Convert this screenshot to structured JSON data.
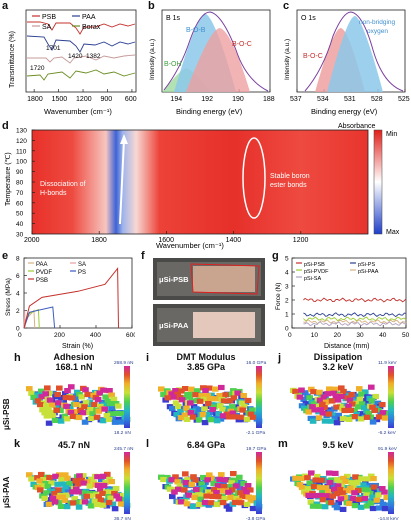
{
  "panel_letters": {
    "a": "a",
    "b": "b",
    "c": "c",
    "d": "d",
    "e": "e",
    "f": "f",
    "g": "g",
    "h": "h",
    "i": "i",
    "j": "j",
    "k": "k",
    "l": "l",
    "m": "m"
  },
  "chart_data": [
    {
      "id": "a",
      "type": "line",
      "xlabel": "Wavenumber (cm⁻¹)",
      "ylabel": "Transmittance (%)",
      "xlim": [
        1900,
        550
      ],
      "xticks": [
        1800,
        1500,
        1200,
        900,
        600
      ],
      "series": [
        {
          "name": "PSB",
          "color": "#c4302b"
        },
        {
          "name": "PAA",
          "color": "#2a3f8f"
        },
        {
          "name": "SA",
          "color": "#c79a9a"
        },
        {
          "name": "Borax",
          "color": "#6b8e23"
        }
      ],
      "annotations": [
        "1701",
        "1420",
        "1382",
        "1720"
      ]
    },
    {
      "id": "b",
      "type": "line",
      "title": "B 1s",
      "xlabel": "Binding energy (eV)",
      "ylabel": "Intensity (a.u.)",
      "xlim": [
        195,
        188
      ],
      "xticks": [
        194,
        192,
        190,
        188
      ],
      "peaks": [
        {
          "name": "B-O-B",
          "center": 192.6,
          "color": "#5ab0e0"
        },
        {
          "name": "B-O-C",
          "center": 191.9,
          "color": "#e07c7c"
        },
        {
          "name": "B-OH",
          "center": 193.6,
          "color": "#6fc26f"
        }
      ]
    },
    {
      "id": "c",
      "type": "line",
      "title": "O 1s",
      "xlabel": "Binding energy (eV)",
      "ylabel": "Intensity (a.u.)",
      "xlim": [
        537,
        525
      ],
      "xticks": [
        537,
        534,
        531,
        528,
        525
      ],
      "peaks": [
        {
          "name": "B-O-C",
          "center": 532.6,
          "color": "#e07c7c"
        },
        {
          "name": "non-bridging oxygen",
          "center": 531.4,
          "color": "#5ab0e0"
        }
      ],
      "labels": {
        "bridge_line1": "non-bridging",
        "bridge_line2": "oxygen"
      }
    },
    {
      "id": "d",
      "type": "heatmap",
      "xlabel": "Wavenumber (cm⁻¹)",
      "ylabel": "Temperature (℃)",
      "xlim": [
        2000,
        1000
      ],
      "xticks": [
        2000,
        1800,
        1600,
        1400,
        1200
      ],
      "ylim": [
        30,
        130
      ],
      "yticks": [
        30,
        40,
        50,
        60,
        70,
        80,
        90,
        100,
        110,
        120,
        130
      ],
      "colorbar": {
        "title": "Absorbance",
        "max_label": "Min",
        "min_label": "Max"
      },
      "annotations": {
        "left_line1": "Dissociation of",
        "left_line2": "H-bonds",
        "right_line1": "Stable boron",
        "right_line2": "ester bonds"
      }
    },
    {
      "id": "e",
      "type": "line",
      "xlabel": "Strain (%)",
      "ylabel": "Stress (MPa)",
      "xlim": [
        0,
        600
      ],
      "ylim": [
        0,
        8
      ],
      "xticks": [
        0,
        200,
        400,
        600
      ],
      "yticks": [
        0,
        2,
        4,
        6,
        8
      ],
      "series": [
        {
          "name": "PAA",
          "color": "#d8b080",
          "x": [
            0,
            20,
            55,
            60
          ],
          "y": [
            0,
            1.2,
            2.0,
            0
          ]
        },
        {
          "name": "SA",
          "color": "#e8a0a0",
          "x": [
            0,
            4,
            6
          ],
          "y": [
            0,
            2.0,
            0
          ]
        },
        {
          "name": "PVDF",
          "color": "#9acd32",
          "x": [
            0,
            20,
            80,
            85
          ],
          "y": [
            0,
            1.6,
            2.1,
            0
          ]
        },
        {
          "name": "PS",
          "color": "#3b5bbf",
          "x": [
            0,
            30,
            160,
            170
          ],
          "y": [
            0,
            1.8,
            2.4,
            0
          ]
        },
        {
          "name": "PSB",
          "color": "#c4302b",
          "x": [
            0,
            30,
            100,
            300,
            450,
            520,
            525
          ],
          "y": [
            0,
            2.5,
            3.5,
            4.2,
            5.0,
            6.8,
            0
          ]
        }
      ]
    },
    {
      "id": "g",
      "type": "line",
      "xlabel": "Distance (mm)",
      "ylabel": "Force (N)",
      "xlim": [
        0,
        50
      ],
      "ylim": [
        0,
        5
      ],
      "xticks": [
        0,
        10,
        20,
        30,
        40,
        50
      ],
      "yticks": [
        0,
        1,
        2,
        3,
        4,
        5
      ],
      "series": [
        {
          "name": "pSi-PSB",
          "color": "#c4302b",
          "level": 2.0
        },
        {
          "name": "pSi-PS",
          "color": "#2a3f8f",
          "level": 0.95
        },
        {
          "name": "pSi-PVDF",
          "color": "#9acd32",
          "level": 0.65
        },
        {
          "name": "pSi-PAA",
          "color": "#d8b080",
          "level": 0.45
        },
        {
          "name": "pSi-SA",
          "color": "#b0a0c0",
          "level": 0.3
        }
      ]
    }
  ],
  "photo_f": {
    "top_label": "μSi-PSB",
    "bottom_label": "μSi-PAA"
  },
  "afm": {
    "row_labels": {
      "top": "μSi-PSB",
      "bottom": "μSi-PAA"
    },
    "panels": [
      {
        "id": "h",
        "title": "Adhesion",
        "value": "168.1 nN",
        "cb_max": "268.9 nN",
        "cb_min": "18.2 nN"
      },
      {
        "id": "i",
        "title": "DMT Modulus",
        "value": "3.85 GPa",
        "cb_max": "16.0 GPa",
        "cb_min": "-2.1 GPa"
      },
      {
        "id": "j",
        "title": "Dissipation",
        "value": "3.2 keV",
        "cb_max": "11.9 keV",
        "cb_min": "-6.2 keV"
      },
      {
        "id": "k",
        "title": "",
        "value": "45.7 nN",
        "cb_max": "245.7 nN",
        "cb_min": "36.7 nN"
      },
      {
        "id": "l",
        "title": "",
        "value": "6.84 GPa",
        "cb_max": "19.7 GPa",
        "cb_min": "-3.8 GPa"
      },
      {
        "id": "m",
        "title": "",
        "value": "9.5 keV",
        "cb_max": "91.9 keV",
        "cb_min": "-14.8 keV"
      }
    ]
  }
}
